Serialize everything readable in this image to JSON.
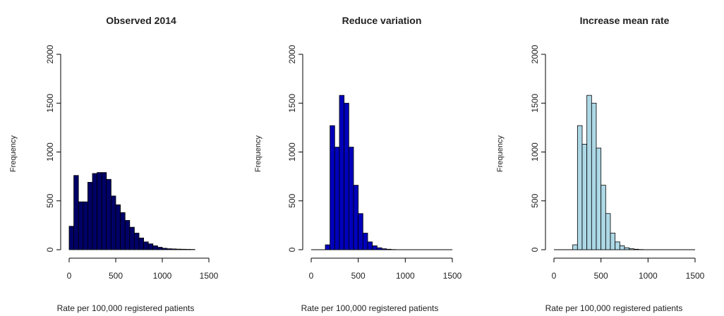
{
  "chart_data": [
    {
      "type": "bar",
      "title": "Observed 2014",
      "xlabel": "Rate per 100,000 registered patients",
      "ylabel": "Frequency",
      "xlim": [
        0,
        1500
      ],
      "ylim": [
        0,
        2000
      ],
      "xticks": [
        "0",
        "500",
        "1000",
        "1500"
      ],
      "yticks": [
        "0",
        "500",
        "1000",
        "1500",
        "2000"
      ],
      "bin_width": 50,
      "bins_start": [
        0,
        50,
        100,
        150,
        200,
        250,
        300,
        350,
        400,
        450,
        500,
        550,
        600,
        650,
        700,
        750,
        800,
        850,
        900,
        950,
        1000,
        1050,
        1100,
        1150,
        1200,
        1250,
        1300
      ],
      "values": [
        240,
        760,
        490,
        490,
        690,
        780,
        790,
        790,
        720,
        550,
        460,
        380,
        300,
        230,
        170,
        120,
        80,
        60,
        40,
        25,
        15,
        10,
        8,
        6,
        5,
        4,
        3
      ],
      "fill": "#000066"
    },
    {
      "type": "bar",
      "title": "Reduce variation",
      "xlabel": "Rate per 100,000 registered patients",
      "ylabel": "Frequency",
      "xlim": [
        0,
        1500
      ],
      "ylim": [
        0,
        2000
      ],
      "xticks": [
        "0",
        "500",
        "1000",
        "1500"
      ],
      "yticks": [
        "0",
        "500",
        "1000",
        "1500",
        "2000"
      ],
      "bin_width": 50,
      "bins_start": [
        150,
        200,
        250,
        300,
        350,
        400,
        450,
        500,
        550,
        600,
        650,
        700,
        750,
        800,
        850
      ],
      "values": [
        50,
        1270,
        1050,
        1580,
        1500,
        1050,
        660,
        370,
        170,
        80,
        40,
        20,
        10,
        5,
        2
      ],
      "fill": "#0000bb"
    },
    {
      "type": "bar",
      "title": "Increase mean rate",
      "xlabel": "Rate per 100,000 registered patients",
      "ylabel": "Frequency",
      "xlim": [
        0,
        1500
      ],
      "ylim": [
        0,
        2000
      ],
      "xticks": [
        "0",
        "500",
        "1000",
        "1500"
      ],
      "yticks": [
        "0",
        "500",
        "1000",
        "1500",
        "2000"
      ],
      "bin_width": 50,
      "bins_start": [
        200,
        250,
        300,
        350,
        400,
        450,
        500,
        550,
        600,
        650,
        700,
        750,
        800,
        850,
        900
      ],
      "values": [
        50,
        1270,
        1080,
        1580,
        1500,
        1040,
        660,
        370,
        170,
        80,
        40,
        20,
        10,
        5,
        2
      ],
      "fill": "#add8e6"
    }
  ]
}
